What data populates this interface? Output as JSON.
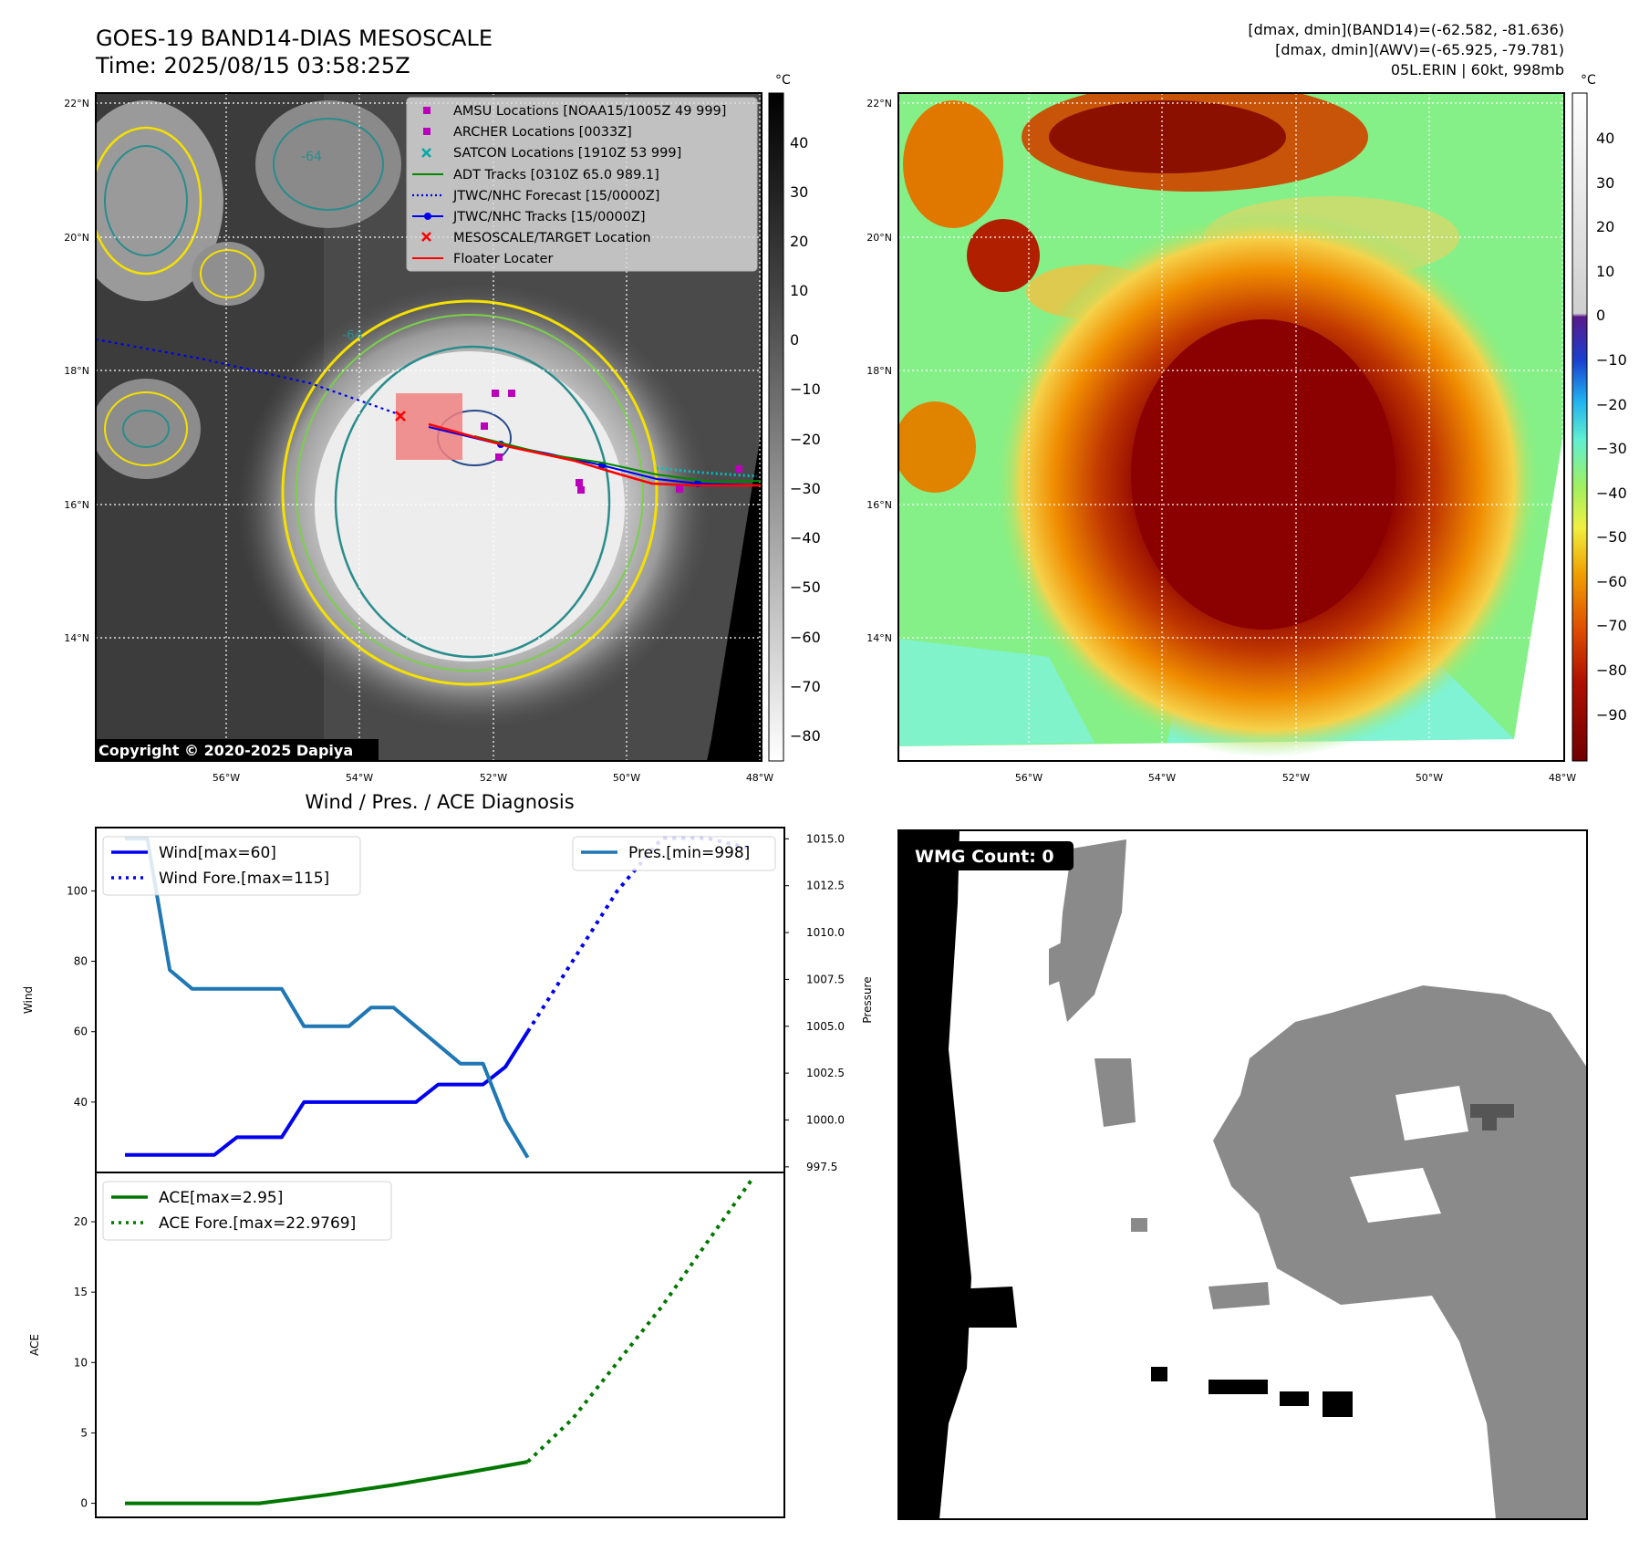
{
  "header": {
    "title_line1": "GOES-19 BAND14-DIAS MESOSCALE",
    "title_line2": "Time: 2025/08/15 03:58:25Z",
    "info_line1": "[dmax, dmin](BAND14)=(-62.582, -81.636)",
    "info_line2": "[dmax, dmin](AWV)=(-65.925, -79.781)",
    "info_line3": "05L.ERIN | 60kt, 998mb"
  },
  "colors": {
    "wind": "#0000ee",
    "pressure": "#1f77b4",
    "ace": "#007700",
    "track_red": "#ff0000",
    "amsu": "#bb00bb",
    "satcon": "#00aaaa",
    "adt": "#008800",
    "wmg_gray": "#8a8a8a"
  },
  "map_ir": {
    "unit_label": "°C",
    "lat_labels": [
      "22°N",
      "20°N",
      "18°N",
      "16°N",
      "14°N"
    ],
    "lon_labels": [
      "56°W",
      "54°W",
      "52°W",
      "50°W",
      "48°W"
    ],
    "colorbar_ticks": [
      "40",
      "30",
      "20",
      "10",
      "0",
      "−10",
      "−20",
      "−30",
      "−40",
      "−50",
      "−60",
      "−70",
      "−80"
    ],
    "contour_label": "-64",
    "copyright": "Copyright © 2020-2025 Dapiya",
    "legend": [
      {
        "label": "AMSU Locations [NOAA15/1005Z 49 999]",
        "marker": "square-magenta"
      },
      {
        "label": "ARCHER Locations [0033Z]",
        "marker": "square-magenta"
      },
      {
        "label": "SATCON Locations [1910Z 53 999]",
        "marker": "x-cyan"
      },
      {
        "label": "ADT Tracks [0310Z 65.0 989.1]",
        "marker": "line-green"
      },
      {
        "label": "JTWC/NHC Forecast [15/0000Z]",
        "marker": "dotted-blue"
      },
      {
        "label": "JTWC/NHC Tracks [15/0000Z]",
        "marker": "line-dot-blue"
      },
      {
        "label": "MESOSCALE/TARGET Location",
        "marker": "x-red"
      },
      {
        "label": "Floater Locater",
        "marker": "line-red"
      }
    ]
  },
  "map_color": {
    "unit_label": "°C",
    "lat_labels": [
      "22°N",
      "20°N",
      "18°N",
      "16°N",
      "14°N"
    ],
    "lon_labels": [
      "56°W",
      "54°W",
      "52°W",
      "50°W",
      "48°W"
    ],
    "colorbar_ticks": [
      "40",
      "30",
      "20",
      "10",
      "0",
      "−10",
      "−20",
      "−30",
      "−40",
      "−50",
      "−60",
      "−70",
      "−80",
      "−90"
    ]
  },
  "wmg": {
    "count_label": "WMG Count: 0"
  },
  "chart_data": [
    {
      "type": "line",
      "title": "Wind / Pres. / ACE Diagnosis",
      "ylabel": "Wind",
      "y2label": "Pressure",
      "ylim": [
        20,
        118
      ],
      "y2lim": [
        997.2,
        1015.6
      ],
      "yticks": [
        "40",
        "60",
        "80",
        "100"
      ],
      "y2ticks": [
        "997.5",
        "1000.0",
        "1002.5",
        "1005.0",
        "1007.5",
        "1010.0",
        "1012.5",
        "1015.0"
      ],
      "x": [
        0,
        1,
        2,
        3,
        4,
        5,
        6,
        7,
        8,
        9,
        10,
        11,
        12,
        13,
        14,
        15,
        16,
        17,
        18,
        19,
        20,
        21,
        22,
        23,
        24,
        25,
        26,
        27,
        28
      ],
      "series": [
        {
          "name": "Wind[max=60]",
          "axis": "left",
          "style": "solid",
          "x": [
            0,
            1,
            2,
            3,
            4,
            5,
            6,
            7,
            8,
            9,
            10,
            11,
            12,
            13,
            14,
            15,
            16,
            17,
            18
          ],
          "values": [
            25,
            25,
            25,
            25,
            25,
            30,
            30,
            30,
            40,
            40,
            40,
            40,
            40,
            40,
            45,
            45,
            45,
            50,
            60
          ]
        },
        {
          "name": "Wind Fore.[max=115]",
          "axis": "left",
          "style": "dotted",
          "x": [
            18,
            20,
            22,
            24,
            26,
            28
          ],
          "values": [
            60,
            80,
            100,
            115,
            115,
            112
          ]
        },
        {
          "name": "Pres.[min=998]",
          "axis": "right",
          "style": "solid",
          "x": [
            0,
            1,
            2,
            3,
            4,
            5,
            6,
            7,
            8,
            9,
            10,
            11,
            12,
            13,
            14,
            15,
            16,
            17,
            18
          ],
          "values": [
            1015,
            1015,
            1008,
            1007,
            1007,
            1007,
            1007,
            1007,
            1005,
            1005,
            1005,
            1006,
            1006,
            1005,
            1004,
            1003,
            1003,
            1000,
            998
          ]
        }
      ]
    },
    {
      "type": "line",
      "ylabel": "ACE",
      "ylim": [
        -1,
        23.5
      ],
      "yticks": [
        "0",
        "5",
        "10",
        "15",
        "20"
      ],
      "series": [
        {
          "name": "ACE[max=2.95]",
          "style": "solid",
          "x": [
            0,
            3,
            6,
            9,
            12,
            15,
            18
          ],
          "values": [
            0,
            0,
            0,
            0.6,
            1.3,
            2.1,
            2.95
          ]
        },
        {
          "name": "ACE Fore.[max=22.9769]",
          "style": "dotted",
          "x": [
            18,
            20,
            22,
            24,
            26,
            28
          ],
          "values": [
            2.95,
            6,
            10,
            14,
            18.5,
            22.9769
          ]
        }
      ]
    }
  ]
}
